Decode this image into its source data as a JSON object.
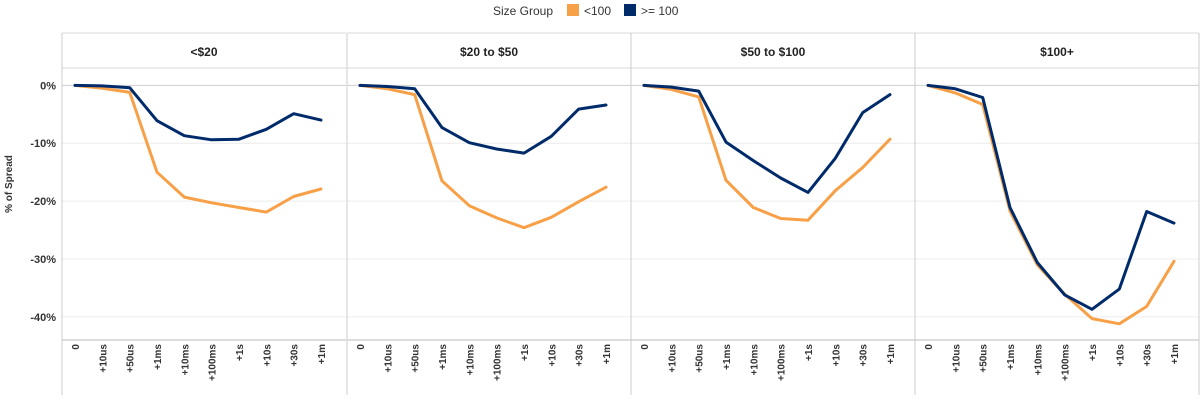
{
  "chart_data": {
    "type": "line",
    "ylabel": "% of Spread",
    "ylim": [
      -44,
      3
    ],
    "yticks": [
      0,
      -10,
      -20,
      -30,
      -40
    ],
    "ytick_labels": [
      "0%",
      "-10%",
      "-20%",
      "-30%",
      "-40%"
    ],
    "grid": true,
    "legend": {
      "title": "Size Group",
      "placement": "top-center",
      "entries": [
        {
          "name": "<100",
          "color": "#F7A047"
        },
        {
          "name": ">= 100",
          "color": "#002B6B"
        }
      ]
    },
    "x": [
      "0",
      "+10us",
      "+50us",
      "+1ms",
      "+10ms",
      "+100ms",
      "+1s",
      "+10s",
      "+30s",
      "+1m"
    ],
    "panels": [
      {
        "title": "<$20",
        "series": [
          {
            "name": "<100",
            "values": [
              0,
              -0.5,
              -1.2,
              -15,
              -19.3,
              -20.3,
              -21.1,
              -21.9,
              -19.2,
              -17.9
            ]
          },
          {
            "name": ">= 100",
            "values": [
              0,
              -0.1,
              -0.4,
              -6.1,
              -8.7,
              -9.4,
              -9.3,
              -7.6,
              -4.9,
              -6.0
            ]
          }
        ]
      },
      {
        "title": "$20 to $50",
        "series": [
          {
            "name": "<100",
            "values": [
              0,
              -0.6,
              -1.6,
              -16.5,
              -20.8,
              -22.9,
              -24.6,
              -22.8,
              -20.1,
              -17.6
            ]
          },
          {
            "name": ">= 100",
            "values": [
              0,
              -0.2,
              -0.6,
              -7.3,
              -9.9,
              -11,
              -11.7,
              -8.8,
              -4.1,
              -3.4
            ]
          }
        ]
      },
      {
        "title": "$50 to $100",
        "series": [
          {
            "name": "<100",
            "values": [
              0,
              -0.7,
              -2,
              -16.4,
              -21.1,
              -23,
              -23.3,
              -18.2,
              -14.2,
              -9.3
            ]
          },
          {
            "name": ">= 100",
            "values": [
              0,
              -0.3,
              -1,
              -9.8,
              -13,
              -16,
              -18.5,
              -12.6,
              -4.7,
              -1.6
            ]
          }
        ]
      },
      {
        "title": "$100+",
        "series": [
          {
            "name": "<100",
            "values": [
              0,
              -1.3,
              -3.3,
              -21.7,
              -31,
              -36.1,
              -40.3,
              -41.2,
              -38.2,
              -30.4
            ]
          },
          {
            "name": ">= 100",
            "values": [
              0,
              -0.6,
              -2.1,
              -21.1,
              -30.6,
              -36.2,
              -38.7,
              -35.2,
              -21.8,
              -23.8
            ]
          }
        ]
      }
    ]
  }
}
